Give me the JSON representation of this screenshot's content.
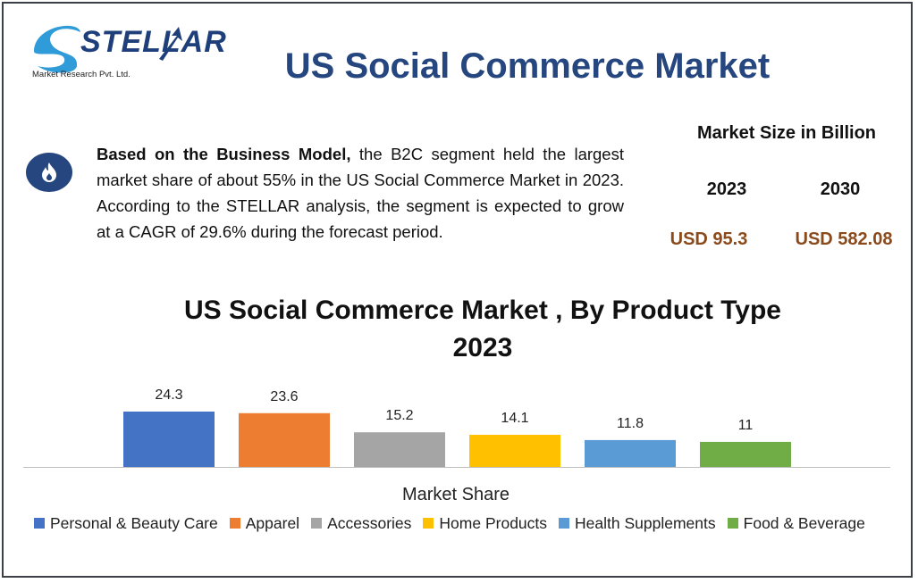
{
  "logo": {
    "word": "STELLAR",
    "subtitle": "Market Research Pvt. Ltd."
  },
  "title": "US Social Commerce Market",
  "summary": {
    "lead": "Based on the Business Model,",
    "text": " the B2C segment held the largest market share of about 55% in the US Social Commerce Market in 2023. According to the STELLAR analysis, the segment is expected to grow at a CAGR of 29.6% during the forecast period.",
    "icon": "flame-icon"
  },
  "market_size": {
    "title": "Market Size in Billion",
    "year_a": "2023",
    "year_b": "2030",
    "value_a": "USD 95.3",
    "value_b": "USD 582.08"
  },
  "colors": {
    "title_blue": "#25467f",
    "value_brown": "#8a4a1c"
  },
  "chart_data": {
    "type": "bar",
    "title_line1": "US Social Commerce Market , By Product Type",
    "title_line2": "2023",
    "xlabel": "Market Share",
    "ylabel": "",
    "ylim": [
      0,
      24.3
    ],
    "grid": false,
    "legend_position": "bottom",
    "categories": [
      "Personal & Beauty Care",
      "Apparel",
      "Accessories",
      "Home Products",
      "Health Supplements",
      "Food & Beverage"
    ],
    "values": [
      24.3,
      23.6,
      15.2,
      14.1,
      11.8,
      11
    ],
    "value_labels": [
      "24.3",
      "23.6",
      "15.2",
      "14.1",
      "11.8",
      "11"
    ],
    "colors": [
      "#4472c4",
      "#ed7d31",
      "#a5a5a5",
      "#ffc000",
      "#5b9bd5",
      "#70ad47"
    ]
  }
}
